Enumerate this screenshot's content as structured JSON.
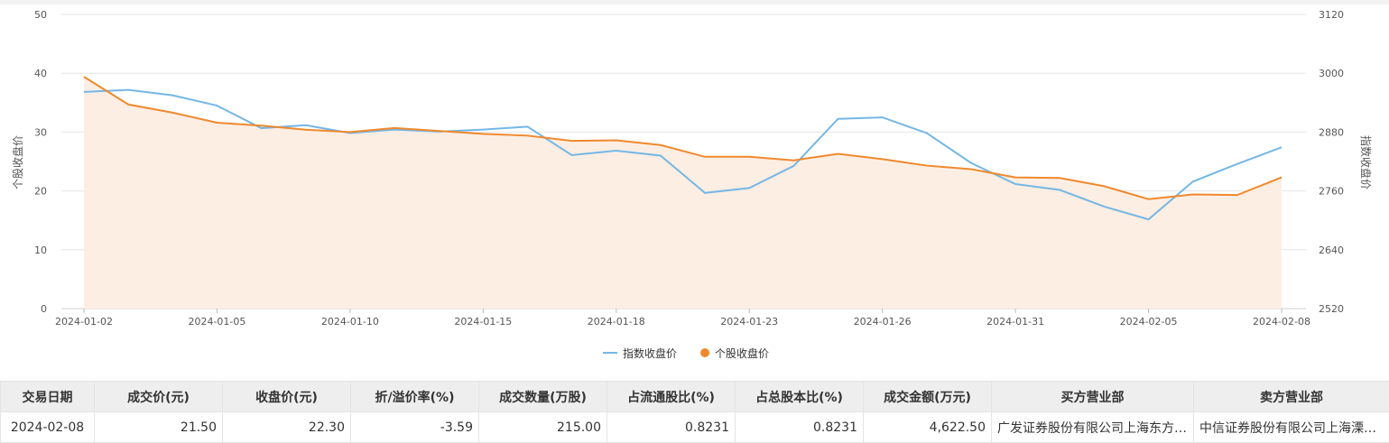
{
  "chart_data": {
    "type": "line",
    "x": [
      "2024-01-02",
      "2024-01-03",
      "2024-01-04",
      "2024-01-05",
      "2024-01-08",
      "2024-01-09",
      "2024-01-10",
      "2024-01-11",
      "2024-01-12",
      "2024-01-15",
      "2024-01-16",
      "2024-01-17",
      "2024-01-18",
      "2024-01-19",
      "2024-01-22",
      "2024-01-23",
      "2024-01-24",
      "2024-01-25",
      "2024-01-26",
      "2024-01-29",
      "2024-01-30",
      "2024-01-31",
      "2024-02-01",
      "2024-02-02",
      "2024-02-05",
      "2024-02-06",
      "2024-02-07",
      "2024-02-08"
    ],
    "x_tick_labels": [
      "2024-01-02",
      "2024-01-05",
      "2024-01-10",
      "2024-01-15",
      "2024-01-18",
      "2024-01-23",
      "2024-01-26",
      "2024-01-31",
      "2024-02-05",
      "2024-02-08"
    ],
    "series": [
      {
        "name": "指数收盘价",
        "axis": "right",
        "color": "#74b7e6",
        "values": [
          2962,
          2966,
          2955,
          2934,
          2888,
          2894,
          2878,
          2885,
          2881,
          2885,
          2891,
          2833,
          2842,
          2832,
          2756,
          2766,
          2811,
          2907,
          2910,
          2878,
          2817,
          2774,
          2762,
          2728,
          2702,
          2779,
          2815,
          2849
        ]
      },
      {
        "name": "个股收盘价",
        "axis": "left",
        "color": "#f0892d",
        "area": true,
        "values": [
          39.4,
          34.7,
          33.3,
          31.6,
          31.1,
          30.4,
          30.0,
          30.7,
          30.2,
          29.7,
          29.4,
          28.5,
          28.6,
          27.8,
          25.8,
          25.8,
          25.2,
          26.3,
          25.4,
          24.3,
          23.7,
          22.3,
          22.2,
          20.8,
          18.6,
          19.4,
          19.3,
          22.3
        ]
      }
    ],
    "y_left": {
      "label": "个股收盘价",
      "ticks": [
        0,
        10,
        20,
        30,
        40,
        50
      ],
      "ylim": [
        0,
        50
      ]
    },
    "y_right": {
      "label": "指数收盘价",
      "ticks": [
        2520,
        2640,
        2760,
        2880,
        3000,
        3120
      ],
      "ylim": [
        2520,
        3120
      ]
    },
    "grid": true,
    "legend_position": "bottom-center"
  },
  "legend": {
    "index_label": "指数收盘价",
    "stock_label": "个股收盘价"
  },
  "table": {
    "headers": [
      "交易日期",
      "成交价(元)",
      "收盘价(元)",
      "折/溢价率(%)",
      "成交数量(万股)",
      "占流通股比(%)",
      "占总股本比(%)",
      "成交金额(万元)",
      "买方营业部",
      "卖方营业部"
    ],
    "rows": [
      [
        "2024-02-08",
        "21.50",
        "22.30",
        "-3.59",
        "215.00",
        "0.8231",
        "0.8231",
        "4,622.50",
        "广发证券股份有限公司上海东方路证券营业部",
        "中信证券股份有限公司上海溧阳路证券营业部"
      ]
    ]
  },
  "colors": {
    "index_line": "#74b7e6",
    "stock_line": "#f0892d",
    "stock_area": "#fdeee3",
    "grid": "#e6e6e6"
  }
}
